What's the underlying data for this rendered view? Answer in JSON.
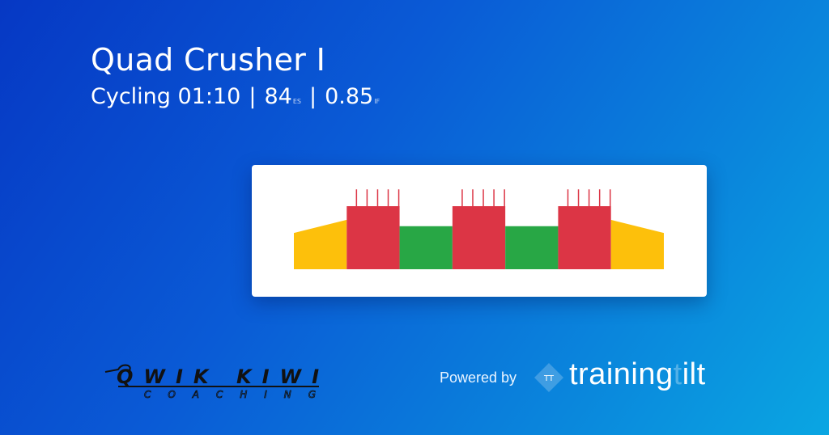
{
  "workout": {
    "title": "Quad Crusher I",
    "sport": "Cycling",
    "duration": "01:10",
    "separator": "|",
    "es_value": "84",
    "es_label": "ES",
    "if_value": "0.85",
    "if_label": "IF"
  },
  "chart_data": {
    "type": "area",
    "x_unit": "min",
    "y_unit": "%FTP",
    "xlim": [
      0,
      70
    ],
    "colors": {
      "warmup": "#fdc00b",
      "work": "#dc3545",
      "recovery": "#28a745"
    },
    "segments": [
      {
        "kind": "warmup",
        "start": 0,
        "end": 10,
        "from": 69,
        "to": 94
      },
      {
        "kind": "work",
        "start": 10,
        "end": 20,
        "from": 120,
        "to": 120
      },
      {
        "kind": "recovery",
        "start": 20,
        "end": 30,
        "from": 82,
        "to": 82
      },
      {
        "kind": "work",
        "start": 30,
        "end": 40,
        "from": 120,
        "to": 120
      },
      {
        "kind": "recovery",
        "start": 40,
        "end": 50,
        "from": 82,
        "to": 82
      },
      {
        "kind": "work",
        "start": 50,
        "end": 60,
        "from": 120,
        "to": 120
      },
      {
        "kind": "warmup",
        "start": 60,
        "end": 70,
        "from": 94,
        "to": 69
      }
    ],
    "surges": {
      "value": 152,
      "times": [
        12,
        14,
        16,
        18,
        20,
        32,
        34,
        36,
        38,
        40,
        52,
        54,
        56,
        58,
        60
      ]
    }
  },
  "branding": {
    "coach_logo_line1": "QWIK KIWI",
    "coach_logo_line2": "COACHING",
    "powered_by": "Powered by",
    "tt_icon_text": "TT",
    "brand_main": "training",
    "brand_dim": "t",
    "brand_end": "ilt"
  }
}
